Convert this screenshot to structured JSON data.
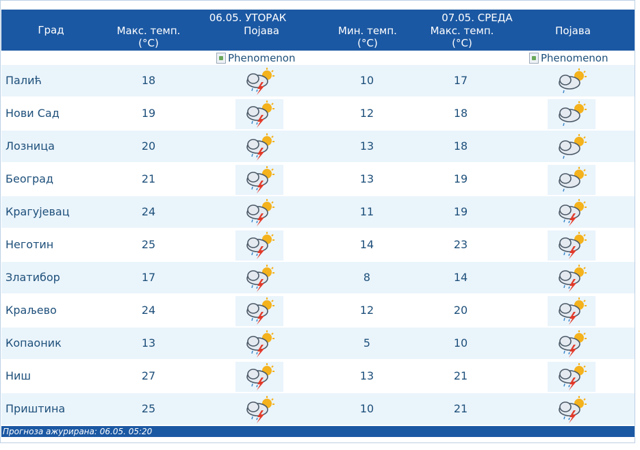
{
  "header": {
    "city_label": "Град",
    "day1": {
      "date": "06.05. УТОРАК",
      "max_label": "Макс. темп.",
      "unit": "(°C)",
      "phenomenon_label": "Појава"
    },
    "day2": {
      "date": "07.05. СРЕДА",
      "min_label": "Мин. темп.",
      "max_label": "Макс. темп.",
      "unit_min": "(°C)",
      "unit_max": "(°C)",
      "phenomenon_label": "Појава"
    },
    "broken_image_alt": "Phenomenon"
  },
  "rows": [
    {
      "city": "Палић",
      "d1_max": "18",
      "d1_icon": "thunderstorm-sun-icon",
      "d2_min": "10",
      "d2_max": "17",
      "d2_icon": "cloudy-sun-rain-icon"
    },
    {
      "city": "Нови Сад",
      "d1_max": "19",
      "d1_icon": "thunderstorm-sun-icon",
      "d2_min": "12",
      "d2_max": "18",
      "d2_icon": "cloudy-sun-rain-icon"
    },
    {
      "city": "Лозница",
      "d1_max": "20",
      "d1_icon": "thunderstorm-sun-icon",
      "d2_min": "13",
      "d2_max": "18",
      "d2_icon": "cloudy-sun-rain-icon"
    },
    {
      "city": "Београд",
      "d1_max": "21",
      "d1_icon": "thunderstorm-sun-icon",
      "d2_min": "13",
      "d2_max": "19",
      "d2_icon": "cloudy-sun-rain-icon"
    },
    {
      "city": "Крагујевац",
      "d1_max": "24",
      "d1_icon": "thunderstorm-sun-icon",
      "d2_min": "11",
      "d2_max": "19",
      "d2_icon": "thunderstorm-sun-icon"
    },
    {
      "city": "Неготин",
      "d1_max": "25",
      "d1_icon": "thunderstorm-sun-icon",
      "d2_min": "14",
      "d2_max": "23",
      "d2_icon": "thunderstorm-sun-icon"
    },
    {
      "city": "Златибор",
      "d1_max": "17",
      "d1_icon": "thunderstorm-sun-icon",
      "d2_min": "8",
      "d2_max": "14",
      "d2_icon": "thunderstorm-sun-icon"
    },
    {
      "city": "Краљево",
      "d1_max": "24",
      "d1_icon": "thunderstorm-sun-icon",
      "d2_min": "12",
      "d2_max": "20",
      "d2_icon": "thunderstorm-sun-icon"
    },
    {
      "city": "Копаоник",
      "d1_max": "13",
      "d1_icon": "thunderstorm-sun-icon",
      "d2_min": "5",
      "d2_max": "10",
      "d2_icon": "thunderstorm-sun-icon"
    },
    {
      "city": "Ниш",
      "d1_max": "27",
      "d1_icon": "thunderstorm-sun-icon",
      "d2_min": "13",
      "d2_max": "21",
      "d2_icon": "thunderstorm-sun-icon"
    },
    {
      "city": "Приштина",
      "d1_max": "25",
      "d1_icon": "thunderstorm-sun-icon",
      "d2_min": "10",
      "d2_max": "21",
      "d2_icon": "thunderstorm-sun-icon"
    }
  ],
  "footer": {
    "updated": "Прогноза ажурирана:  06.05. 05:20"
  },
  "colors": {
    "header_bg": "#1b58a3",
    "row_alt_bg": "#eaf4fb",
    "text": "#1d4f7a"
  }
}
